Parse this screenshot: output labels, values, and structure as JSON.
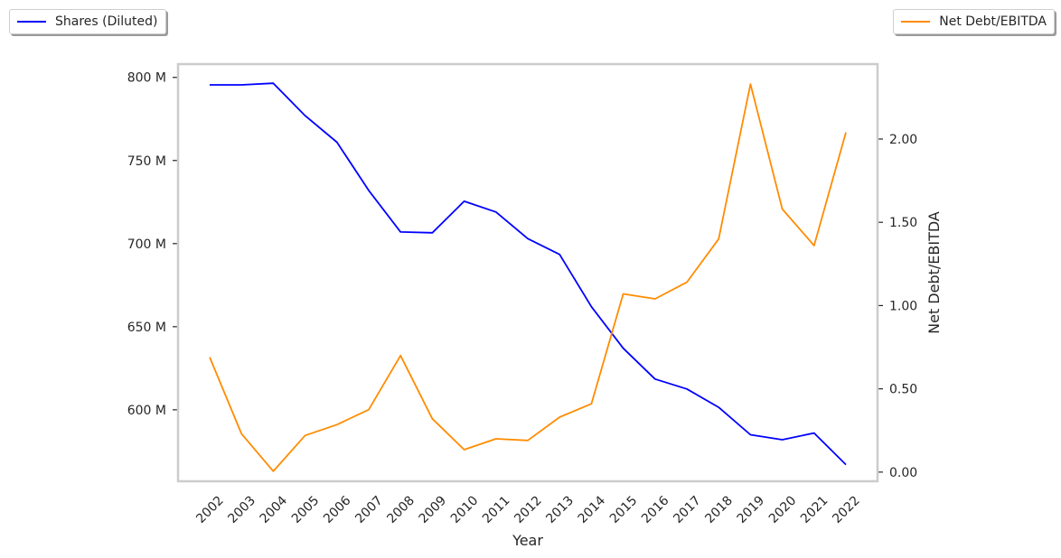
{
  "chart_data": {
    "type": "line",
    "xlabel": "Year",
    "x": [
      "2002",
      "2003",
      "2004",
      "2005",
      "2006",
      "2007",
      "2008",
      "2009",
      "2010",
      "2011",
      "2012",
      "2013",
      "2014",
      "2015",
      "2016",
      "2017",
      "2018",
      "2019",
      "2020",
      "2021",
      "2022"
    ],
    "series": [
      {
        "name": "Shares (Diluted)",
        "axis": "left",
        "color": "#0000ff",
        "values": [
          795.5,
          795.5,
          796.5,
          777,
          761,
          732,
          707,
          706.5,
          725.5,
          719,
          703,
          693.5,
          662,
          637,
          618.5,
          612.5,
          601.5,
          585,
          582,
          586,
          567
        ]
      },
      {
        "name": "Net Debt/EBITDA",
        "axis": "right",
        "color": "#ff8c00",
        "values": [
          0.69,
          0.23,
          0.005,
          0.22,
          0.285,
          0.375,
          0.7,
          0.32,
          0.135,
          0.2,
          0.19,
          0.33,
          0.41,
          1.07,
          1.04,
          1.14,
          1.4,
          2.33,
          1.58,
          1.36,
          2.04
        ]
      }
    ],
    "y_left": {
      "ylim": [
        557,
        808
      ],
      "ticks": [
        600,
        650,
        700,
        750,
        800
      ],
      "tick_labels": [
        "600 M",
        "650 M",
        "700 M",
        "750 M",
        "800 M"
      ]
    },
    "y_right": {
      "ylabel": "Net Debt/EBITDA",
      "ylim": [
        -0.055,
        2.45
      ],
      "ticks": [
        0,
        0.5,
        1.0,
        1.5,
        2.0
      ],
      "tick_labels": [
        "0.00",
        "0.50",
        "1.00",
        "1.50",
        "2.00"
      ]
    },
    "grid": false,
    "legend_left": "top-left",
    "legend_right": "top-right"
  }
}
